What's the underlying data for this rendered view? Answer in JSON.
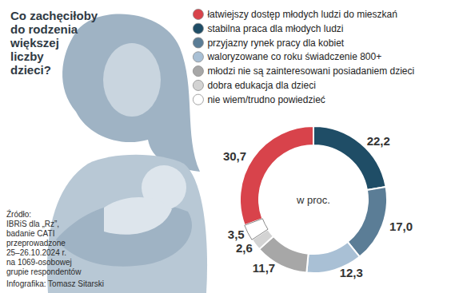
{
  "chart_data": {
    "type": "pie",
    "title": "Co zachęciłoby\ndo rodzenia\nwiększej\nliczby\ndzieci?",
    "categories": [
      "łatwiejszy dostęp młodych ludzi do mieszkań",
      "stabilna praca dla młodych ludzi",
      "przyjazny rynek pracy dla kobiet",
      "waloryzowane co roku świadczenie 800+",
      "młodzi nie są zainteresowani posiadaniem dzieci",
      "dobra edukacja dla dzieci",
      "nie wiem/trudno powiedzieć"
    ],
    "values": [
      30.7,
      22.2,
      17.0,
      12.3,
      11.7,
      2.6,
      3.5
    ],
    "value_labels": [
      "30,7",
      "22,2",
      "17,0",
      "12,3",
      "11,7",
      "2,6",
      "3,5"
    ],
    "colors": [
      "#d8434b",
      "#1f4d66",
      "#5b7d96",
      "#a9c0d5",
      "#a7a7a7",
      "#d3d3d3",
      "#ffffff"
    ],
    "data_labels": true,
    "legend": "top-right",
    "annotations": [
      "w proc."
    ],
    "source": [
      "Źródło:",
      "IBRiS dla „Rz”,",
      "badanie CATI",
      "przeprowadzone",
      "25–26.10.2024 r.",
      "na 1069-osobowej",
      "grupie respondentów"
    ],
    "credit": "Infografika: Tomasz Sitarski"
  }
}
